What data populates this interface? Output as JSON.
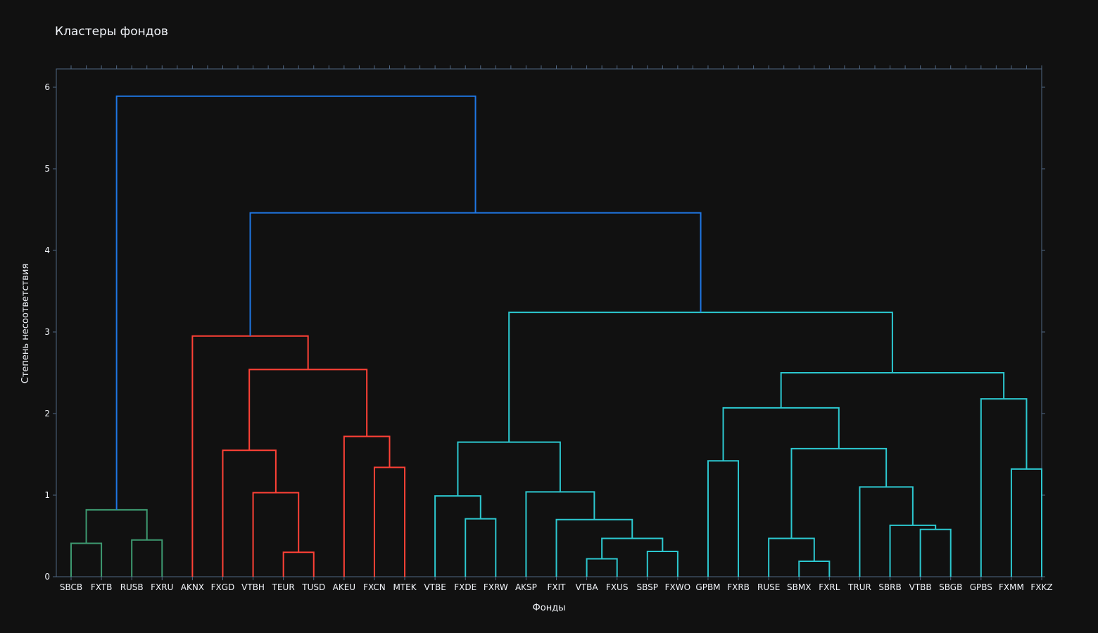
{
  "chart_data": {
    "type": "dendrogram",
    "title": "Кластеры фондов",
    "xlabel": "Фонды",
    "ylabel": "Степень несоответствия",
    "ylim": [
      0,
      6.2
    ],
    "yticks": [
      0,
      1,
      2,
      3,
      4,
      5,
      6
    ],
    "grid": false,
    "colors": {
      "background": "#111111",
      "axis": "#506784",
      "text": "#f2f5fa",
      "cluster_green": "#3d9970",
      "cluster_red": "#ff4136",
      "cluster_cyan": "#2cc8d0",
      "root_blue": "#1f77e4"
    },
    "leaves": [
      "SBCB",
      "FXTB",
      "RUSB",
      "FXRU",
      "AKNX",
      "FXGD",
      "VTBH",
      "TEUR",
      "TUSD",
      "AKEU",
      "FXCN",
      "MTEK",
      "VTBE",
      "FXDE",
      "FXRW",
      "AKSP",
      "FXIT",
      "VTBA",
      "FXUS",
      "SBSP",
      "FXWO",
      "GPBM",
      "FXRB",
      "RUSE",
      "SBMX",
      "FXRL",
      "TRUR",
      "SBRB",
      "VTBB",
      "SBGB",
      "GPBS",
      "FXMM",
      "FXKZ"
    ],
    "merges": [
      {
        "id": "g1",
        "left": "SBCB",
        "right": "FXTB",
        "height": 0.41,
        "color": "cluster_green"
      },
      {
        "id": "g2",
        "left": "RUSB",
        "right": "FXRU",
        "height": 0.45,
        "color": "cluster_green"
      },
      {
        "id": "g3",
        "left": "g1",
        "right": "g2",
        "height": 0.82,
        "color": "cluster_green"
      },
      {
        "id": "r1",
        "left": "TEUR",
        "right": "TUSD",
        "height": 0.3,
        "color": "cluster_red"
      },
      {
        "id": "r2",
        "left": "VTBH",
        "right": "r1",
        "height": 1.03,
        "color": "cluster_red"
      },
      {
        "id": "r3",
        "left": "FXGD",
        "right": "r2",
        "height": 1.55,
        "color": "cluster_red"
      },
      {
        "id": "r4",
        "left": "FXCN",
        "right": "MTEK",
        "height": 1.34,
        "color": "cluster_red"
      },
      {
        "id": "r5",
        "left": "AKEU",
        "right": "r4",
        "height": 1.72,
        "color": "cluster_red"
      },
      {
        "id": "r6",
        "left": "r3",
        "right": "r5",
        "height": 2.54,
        "color": "cluster_red"
      },
      {
        "id": "r7",
        "left": "AKNX",
        "right": "r6",
        "height": 2.95,
        "color": "cluster_red"
      },
      {
        "id": "c1",
        "left": "FXDE",
        "right": "FXRW",
        "height": 0.71,
        "color": "cluster_cyan"
      },
      {
        "id": "c2",
        "left": "VTBE",
        "right": "c1",
        "height": 0.99,
        "color": "cluster_cyan"
      },
      {
        "id": "c3",
        "left": "VTBA",
        "right": "FXUS",
        "height": 0.22,
        "color": "cluster_cyan"
      },
      {
        "id": "c4",
        "left": "SBSP",
        "right": "FXWO",
        "height": 0.31,
        "color": "cluster_cyan"
      },
      {
        "id": "c5",
        "left": "c3",
        "right": "c4",
        "height": 0.47,
        "color": "cluster_cyan"
      },
      {
        "id": "c6",
        "left": "FXIT",
        "right": "c5",
        "height": 0.7,
        "color": "cluster_cyan"
      },
      {
        "id": "c7",
        "left": "AKSP",
        "right": "c6",
        "height": 1.04,
        "color": "cluster_cyan"
      },
      {
        "id": "c8",
        "left": "c2",
        "right": "c7",
        "height": 1.65,
        "color": "cluster_cyan"
      },
      {
        "id": "c9",
        "left": "GPBM",
        "right": "FXRB",
        "height": 1.42,
        "color": "cluster_cyan"
      },
      {
        "id": "c10",
        "left": "SBMX",
        "right": "FXRL",
        "height": 0.19,
        "color": "cluster_cyan"
      },
      {
        "id": "c11",
        "left": "RUSE",
        "right": "c10",
        "height": 0.47,
        "color": "cluster_cyan"
      },
      {
        "id": "c12",
        "left": "VTBB",
        "right": "SBGB",
        "height": 0.58,
        "color": "cluster_cyan"
      },
      {
        "id": "c13",
        "left": "SBRB",
        "right": "c12",
        "height": 0.63,
        "color": "cluster_cyan"
      },
      {
        "id": "c14",
        "left": "TRUR",
        "right": "c13",
        "height": 1.1,
        "color": "cluster_cyan"
      },
      {
        "id": "c15",
        "left": "c11",
        "right": "c14",
        "height": 1.57,
        "color": "cluster_cyan"
      },
      {
        "id": "c16",
        "left": "c9",
        "right": "c15",
        "height": 2.07,
        "color": "cluster_cyan"
      },
      {
        "id": "c17",
        "left": "FXMM",
        "right": "FXKZ",
        "height": 1.32,
        "color": "cluster_cyan"
      },
      {
        "id": "c18",
        "left": "GPBS",
        "right": "c17",
        "height": 2.18,
        "color": "cluster_cyan"
      },
      {
        "id": "c19",
        "left": "c16",
        "right": "c18",
        "height": 2.5,
        "color": "cluster_cyan"
      },
      {
        "id": "c20",
        "left": "c8",
        "right": "c19",
        "height": 3.24,
        "color": "cluster_cyan"
      },
      {
        "id": "b1",
        "left": "r7",
        "right": "c20",
        "height": 4.46,
        "color": "root_blue"
      },
      {
        "id": "b2",
        "left": "g3",
        "right": "b1",
        "height": 5.89,
        "color": "root_blue"
      }
    ]
  }
}
